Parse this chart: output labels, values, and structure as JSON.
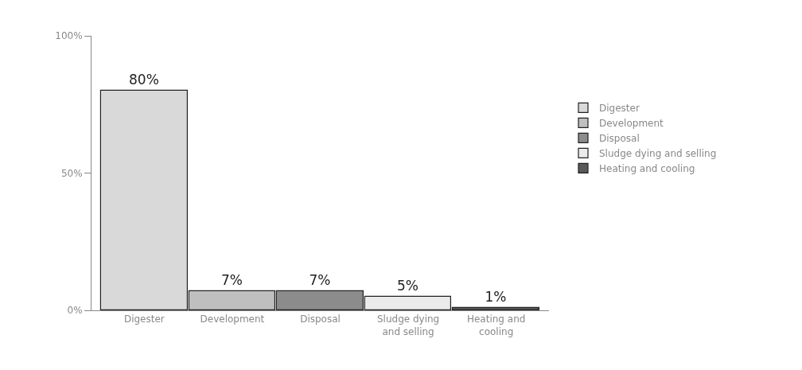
{
  "chart_data": {
    "type": "bar",
    "categories": [
      "Digester",
      "Development",
      "Disposal",
      "Sludge dying and selling",
      "Heating and cooling"
    ],
    "series": [
      {
        "name": "Digester",
        "color": "#d9d9d9",
        "values": [
          80,
          null,
          null,
          null,
          null
        ],
        "value_labels": [
          "80%",
          null,
          null,
          null,
          null
        ]
      },
      {
        "name": "Development",
        "color": "#bfbfbf",
        "values": [
          null,
          7,
          null,
          null,
          null
        ],
        "value_labels": [
          null,
          "7%",
          null,
          null,
          null
        ]
      },
      {
        "name": "Disposal",
        "color": "#8c8c8c",
        "values": [
          null,
          null,
          7,
          null,
          null
        ],
        "value_labels": [
          null,
          null,
          "7%",
          null,
          null
        ]
      },
      {
        "name": "Sludge dying and selling",
        "color": "#ebebeb",
        "values": [
          null,
          null,
          null,
          5,
          null
        ],
        "value_labels": [
          null,
          null,
          null,
          "5%",
          null
        ]
      },
      {
        "name": "Heating and cooling",
        "color": "#595959",
        "values": [
          null,
          null,
          null,
          null,
          1
        ],
        "value_labels": [
          null,
          null,
          null,
          null,
          "1%"
        ]
      }
    ],
    "ylim": [
      0,
      100
    ],
    "yticks": [
      {
        "value": 0,
        "label": "0%"
      },
      {
        "value": 50,
        "label": "50%"
      },
      {
        "value": 100,
        "label": "100%"
      }
    ],
    "grid": false,
    "legend": "right"
  }
}
